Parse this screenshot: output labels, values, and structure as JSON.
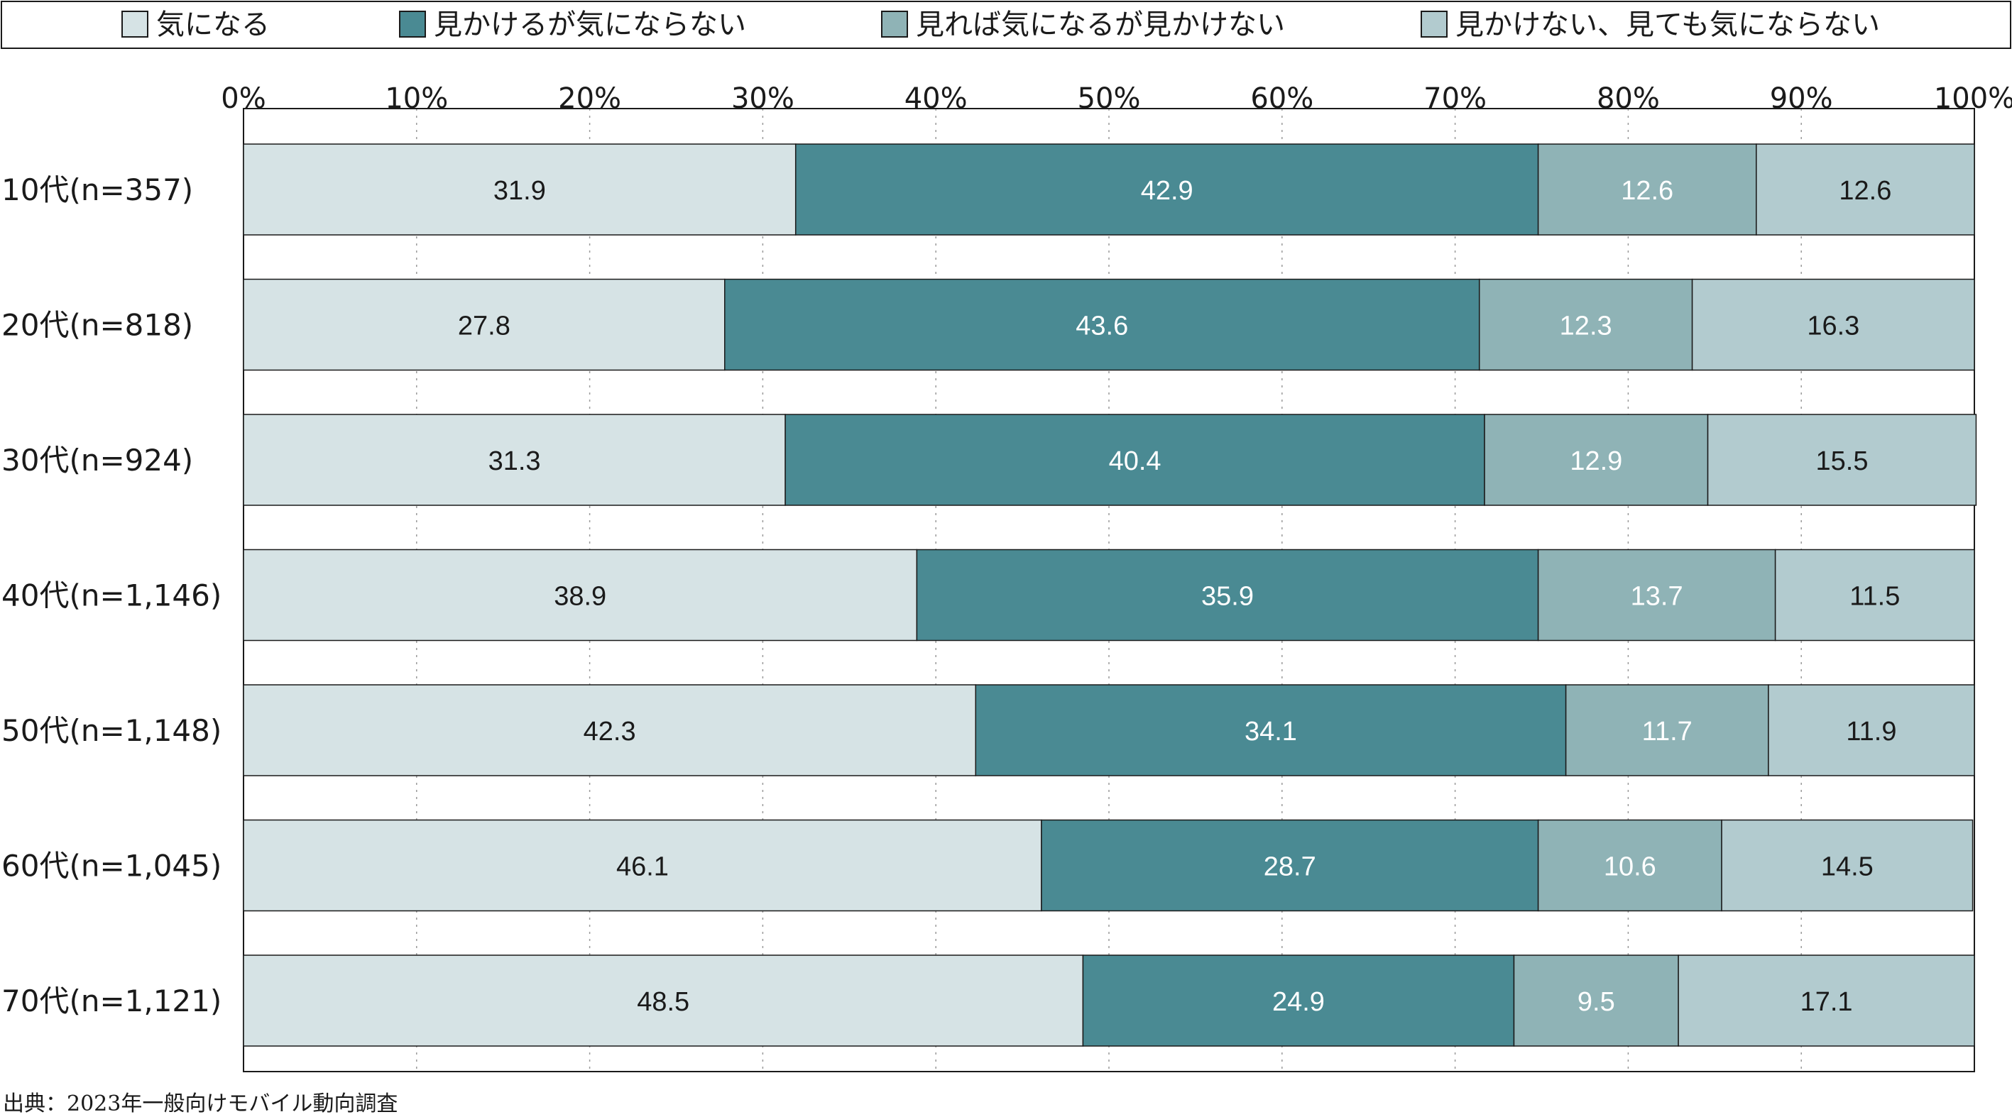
{
  "chart_data": {
    "type": "bar",
    "orientation": "horizontal",
    "stacked": true,
    "categories": [
      "10代(n=357)",
      "20代(n=818)",
      "30代(n=924)",
      "40代(n=1,146)",
      "50代(n=1,148)",
      "60代(n=1,045)",
      "70代(n=1,121)"
    ],
    "series": [
      {
        "name": "気になる",
        "color": "#d6e3e5",
        "text_color": "#1a1a1a",
        "values": [
          31.9,
          27.8,
          31.3,
          38.9,
          42.3,
          46.1,
          48.5
        ]
      },
      {
        "name": "見かけるが気にならない",
        "color": "#4a8a93",
        "text_color": "#ffffff",
        "values": [
          42.9,
          43.6,
          40.4,
          35.9,
          34.1,
          28.7,
          24.9
        ]
      },
      {
        "name": "見れば気になるが見かけない",
        "color": "#8fb3b6",
        "text_color": "#ffffff",
        "values": [
          12.6,
          12.3,
          12.9,
          13.7,
          11.7,
          10.6,
          9.5
        ]
      },
      {
        "name": "見かけない、見ても気にならない",
        "color": "#b2cbcf",
        "text_color": "#1a1a1a",
        "values": [
          12.6,
          16.3,
          15.5,
          11.5,
          11.9,
          14.5,
          17.1
        ]
      }
    ],
    "x_ticks": [
      "0%",
      "10%",
      "20%",
      "30%",
      "40%",
      "50%",
      "60%",
      "70%",
      "80%",
      "90%",
      "100%"
    ],
    "xlim": [
      0,
      100
    ],
    "legend_position": "top",
    "grid": "vertical-dotted"
  },
  "source": "出典：2023年一般向けモバイル動向調査"
}
